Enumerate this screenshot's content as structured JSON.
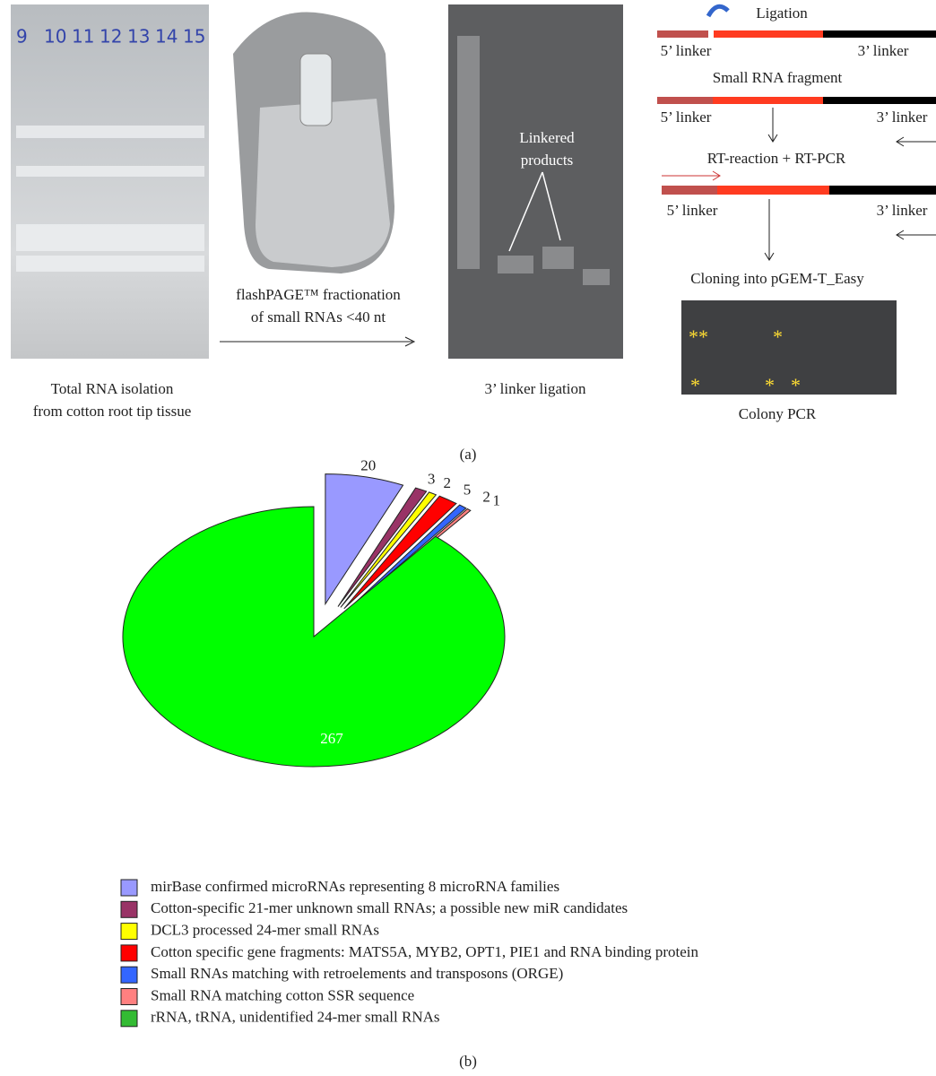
{
  "panel_a": {
    "lanes": [
      "9",
      "10",
      "11",
      "12",
      "13",
      "14",
      "15"
    ],
    "gel_caption": [
      "Total RNA isolation",
      "from cotton root tip tissue"
    ],
    "fractionation_caption": [
      "flashPAGE™ fractionation",
      "of small RNAs <40 nt"
    ],
    "ligation_caption": "3’ linker ligation",
    "products_label": [
      "Linkered",
      "products"
    ],
    "diagram": {
      "ligation": "Ligation",
      "linker_5": "5’ linker",
      "linker_3": "3’ linker",
      "fragment": "Small RNA fragment",
      "rt": "RT-reaction + RT-PCR",
      "cloning": "Cloning into pGEM-T_Easy"
    },
    "colony_caption": "Colony PCR",
    "panel_label": "(a)"
  },
  "chart_data": {
    "type": "pie",
    "categories": [
      "mirBase confirmed microRNAs representing 8 microRNA families",
      "Cotton-specific 21-mer unknown small RNAs; a possible  new miR candidates",
      "DCL3 processed 24-mer small RNAs",
      "Cotton specific gene fragments: MATS5A, MYB2, OPT1, PIE1 and RNA binding protein",
      "Small RNAs matching with retroelements  and transposons (ORGE)",
      "Small RNA matching cotton SSR sequence",
      "rRNA, tRNA, unidentified 24-mer small RNAs"
    ],
    "values": [
      20,
      3,
      2,
      5,
      2,
      1,
      267
    ],
    "colors": [
      "#9999ff",
      "#993366",
      "#ffff00",
      "#ff0000",
      "#3366ff",
      "#ff8080",
      "#00ff00"
    ],
    "legend_colors": [
      "#9999ff",
      "#993366",
      "#ffff00",
      "#ff0000",
      "#3366ff",
      "#ff8080",
      "#33bb33"
    ],
    "panel_label": "(b)"
  }
}
